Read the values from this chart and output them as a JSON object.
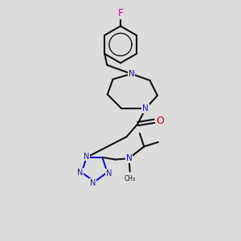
{
  "bg_color": "#dcdcdc",
  "bond_color": "#111111",
  "N_color": "#1414cc",
  "O_color": "#cc0000",
  "F_color": "#cc00aa",
  "lw": 1.5,
  "figsize": [
    3.0,
    3.0
  ],
  "dpi": 100,
  "xlim": [
    -1.5,
    8.5
  ],
  "ylim": [
    -0.5,
    10.5
  ]
}
